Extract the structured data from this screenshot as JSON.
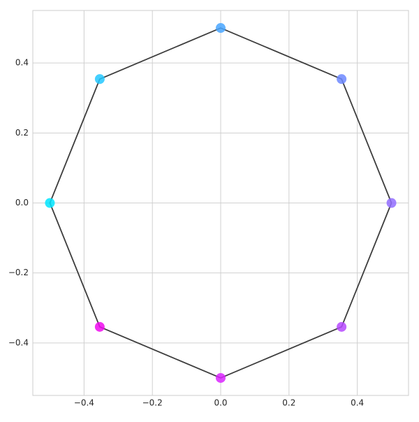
{
  "chart_data": {
    "type": "scatter",
    "series": [
      {
        "type": "line",
        "color": "#3d3d3d",
        "x": [
          0.5,
          0.354,
          0,
          -0.354,
          -0.5,
          -0.354,
          0,
          0.354,
          0.5
        ],
        "values": [
          0,
          0.354,
          0.5,
          0.354,
          0,
          -0.354,
          -0.5,
          -0.354,
          0
        ]
      },
      {
        "type": "scatter",
        "colors": [
          "#00e5ff",
          "#24c8ff",
          "#49a6ff",
          "#6d88ff",
          "#926dff",
          "#b649ff",
          "#db24ff",
          "#f00af0"
        ],
        "x": [
          -0.5,
          -0.354,
          0,
          0.354,
          0.5,
          0.354,
          0,
          -0.354
        ],
        "values": [
          0,
          0.354,
          0.5,
          0.354,
          0,
          -0.354,
          -0.5,
          -0.354
        ]
      }
    ],
    "xlim": [
      -0.55,
      0.55
    ],
    "ylim": [
      -0.55,
      0.55
    ],
    "xticks": [
      {
        "value": -0.4,
        "label": "−0.4"
      },
      {
        "value": -0.2,
        "label": "−0.2"
      },
      {
        "value": 0,
        "label": "0.0"
      },
      {
        "value": 0.2,
        "label": "0.2"
      },
      {
        "value": 0.4,
        "label": "0.4"
      }
    ],
    "yticks": [
      {
        "value": -0.4,
        "label": "−0.4"
      },
      {
        "value": -0.2,
        "label": "−0.2"
      },
      {
        "value": 0,
        "label": "0.0"
      },
      {
        "value": 0.2,
        "label": "0.2"
      },
      {
        "value": 0.4,
        "label": "0.4"
      }
    ],
    "grid": true
  }
}
